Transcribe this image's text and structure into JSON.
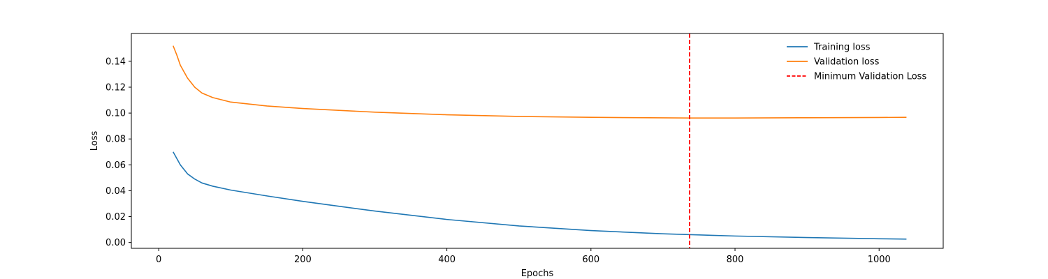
{
  "chart_data": {
    "type": "line",
    "title": "",
    "xlabel": "Epochs",
    "ylabel": "Loss",
    "xlim": [
      -38,
      1089
    ],
    "ylim": [
      -0.0045,
      0.1615
    ],
    "xticks": [
      0,
      200,
      400,
      600,
      800,
      1000
    ],
    "xtick_labels": [
      "0",
      "200",
      "400",
      "600",
      "800",
      "1000"
    ],
    "yticks": [
      0.0,
      0.02,
      0.04,
      0.06,
      0.08,
      0.1,
      0.12,
      0.14
    ],
    "ytick_labels": [
      "0.00",
      "0.02",
      "0.04",
      "0.06",
      "0.08",
      "0.10",
      "0.12",
      "0.14"
    ],
    "grid": false,
    "legend_position": "top-right",
    "series": [
      {
        "name": "Training loss",
        "color": "#1f77b4",
        "style": "solid",
        "x": [
          20,
          30,
          40,
          50,
          60,
          75,
          100,
          150,
          200,
          250,
          300,
          400,
          500,
          600,
          700,
          800,
          900,
          1000,
          1038
        ],
        "y": [
          0.07,
          0.06,
          0.053,
          0.049,
          0.046,
          0.0435,
          0.0405,
          0.036,
          0.0318,
          0.028,
          0.0243,
          0.0178,
          0.0128,
          0.0092,
          0.0067,
          0.005,
          0.0038,
          0.0029,
          0.0026
        ]
      },
      {
        "name": "Validation loss",
        "color": "#ff7f0e",
        "style": "solid",
        "x": [
          20,
          25,
          30,
          40,
          50,
          60,
          75,
          100,
          150,
          200,
          300,
          400,
          500,
          600,
          700,
          737,
          800,
          900,
          1000,
          1038
        ],
        "y": [
          0.152,
          0.145,
          0.137,
          0.127,
          0.12,
          0.1155,
          0.112,
          0.1085,
          0.1055,
          0.1035,
          0.1007,
          0.0987,
          0.0974,
          0.0967,
          0.0963,
          0.0962,
          0.0962,
          0.0964,
          0.0966,
          0.0967
        ]
      }
    ],
    "vlines": [
      {
        "name": "Minimum Validation Loss",
        "x": 737,
        "color": "#ff0000",
        "style": "dashed"
      }
    ]
  }
}
